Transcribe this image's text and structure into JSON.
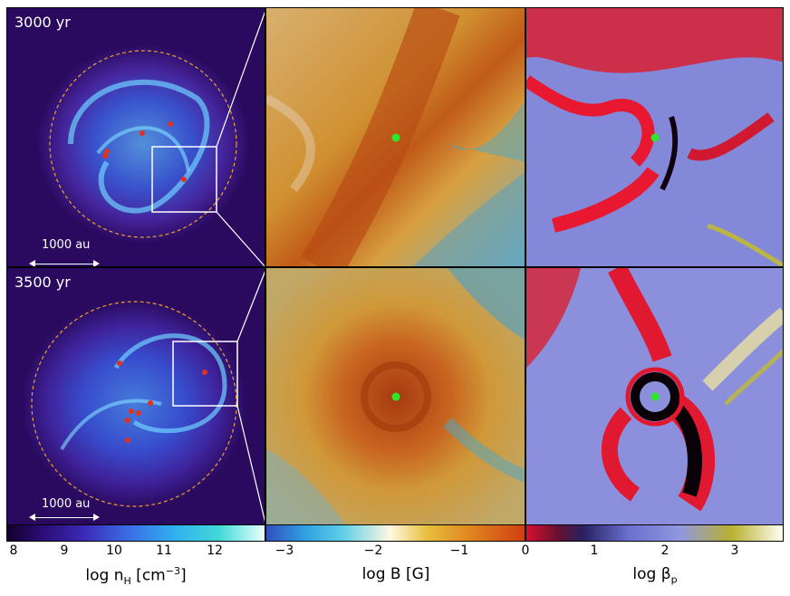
{
  "rows": [
    {
      "time_label": "3000 yr",
      "scale_label": "1000 au"
    },
    {
      "time_label": "3500 yr",
      "scale_label": "1000 au"
    }
  ],
  "colorbars": [
    {
      "ticks": [
        "8",
        "9",
        "10",
        "11",
        "12"
      ],
      "label": "log n",
      "label_sub": "H",
      "label_tail": " [cm",
      "label_sup": "−3",
      "label_end": "]"
    },
    {
      "ticks": [
        "−3",
        "−2",
        "−1",
        "0"
      ],
      "label": "log B [G]"
    },
    {
      "ticks": [
        "0",
        "1",
        "2",
        "3"
      ],
      "label": "log β",
      "label_sub": "p"
    }
  ],
  "colors": {
    "density_bg": "#2a0a5e",
    "sink_red": "#e0321e",
    "star_green": "#2be82b",
    "circle_orange": "#f0a030"
  }
}
